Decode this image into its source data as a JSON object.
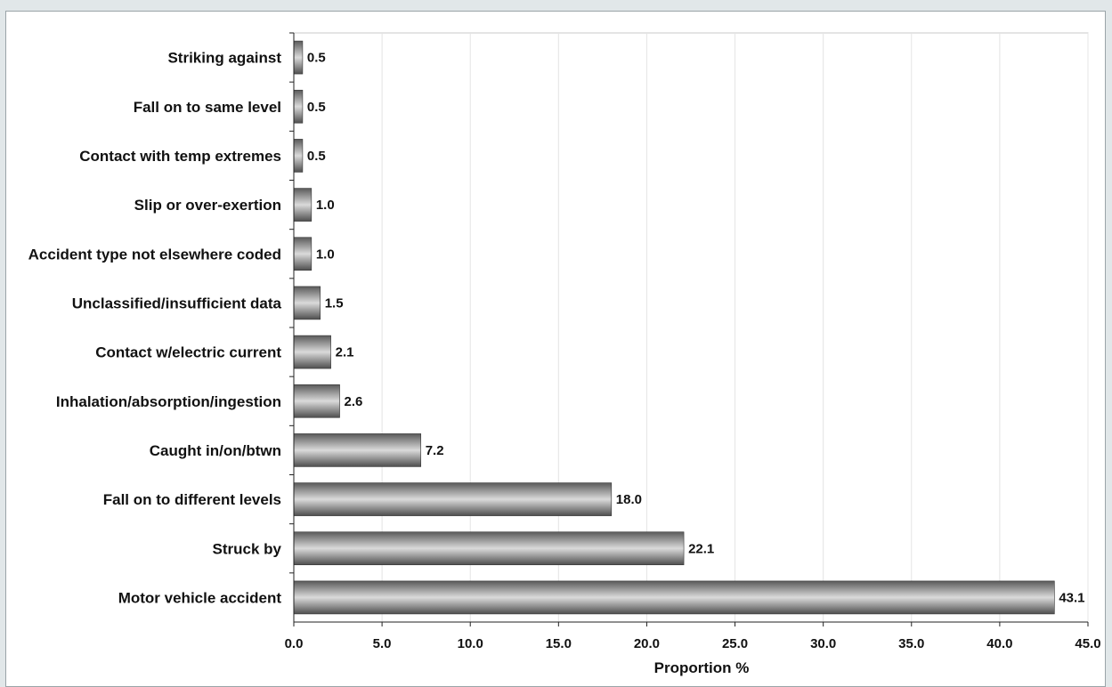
{
  "chart_data": {
    "type": "bar",
    "orientation": "horizontal",
    "title": "",
    "xlabel": "Proportion %",
    "ylabel": "",
    "xlim": [
      0,
      45
    ],
    "x_ticks": [
      "0.0",
      "5.0",
      "10.0",
      "15.0",
      "20.0",
      "25.0",
      "30.0",
      "35.0",
      "40.0",
      "45.0"
    ],
    "grid": "vertical gridlines",
    "legend": "none",
    "categories": [
      "Striking against",
      "Fall on to same level",
      "Contact with temp extremes",
      "Slip or over-exertion",
      "Accident type not elsewhere coded",
      "Unclassified/insufficient data",
      "Contact w/electric current",
      "Inhalation/absorption/ingestion",
      "Caught in/on/btwn",
      "Fall on to different levels",
      "Struck by",
      "Motor vehicle accident"
    ],
    "values": [
      0.5,
      0.5,
      0.5,
      1.0,
      1.0,
      1.5,
      2.1,
      2.6,
      7.2,
      18.0,
      22.1,
      43.1
    ],
    "value_labels": [
      "0.5",
      "0.5",
      "0.5",
      "1.0",
      "1.0",
      "1.5",
      "2.1",
      "2.6",
      "7.2",
      "18.0",
      "22.1",
      "43.1"
    ],
    "colors": {
      "bar_dark": "#555555",
      "bar_light": "#dcdcdc",
      "grid": "#e4e4e4",
      "frame": "#9aa4a8"
    }
  }
}
